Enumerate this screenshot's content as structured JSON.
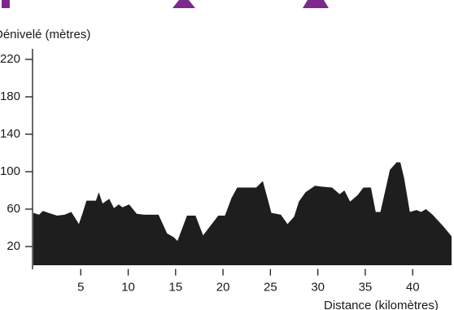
{
  "chart_data": {
    "type": "area",
    "y_label": "Dénivelé (mètres)",
    "x_label": "Distance (kilomètres)",
    "x": [
      0,
      0.6,
      1.0,
      1.6,
      2.5,
      3.3,
      4.0,
      4.5,
      4.8,
      5.2,
      5.6,
      6.6,
      6.9,
      7.3,
      8.0,
      8.5,
      9.0,
      9.4,
      10.1,
      10.9,
      11.7,
      13.2,
      14.1,
      14.8,
      15.2,
      16.2,
      17.1,
      17.9,
      19.5,
      20.2,
      20.9,
      21.5,
      23.5,
      24.2,
      25.1,
      26.1,
      26.8,
      27.5,
      28.0,
      28.7,
      29.7,
      30.4,
      31.5,
      32.3,
      32.8,
      33.4,
      34.2,
      34.8,
      35.6,
      36.1,
      36.6,
      37.6,
      38.3,
      38.7,
      39.1,
      39.7,
      40.4,
      40.9,
      41.4,
      42.1,
      43.2,
      44.1
    ],
    "values": [
      56,
      54,
      58,
      56,
      53,
      54,
      57,
      49,
      44,
      56,
      69,
      69,
      78,
      66,
      71,
      61,
      65,
      62,
      65,
      55,
      54,
      54,
      34,
      30,
      26,
      53,
      53,
      32,
      53,
      53,
      72,
      83,
      83,
      90,
      56,
      54,
      44,
      52,
      68,
      78,
      85,
      84,
      83,
      76,
      80,
      68,
      75,
      83,
      83,
      57,
      57,
      102,
      110,
      110,
      93,
      57,
      59,
      57,
      60,
      54,
      42,
      31
    ],
    "color": "#1e1e1e",
    "xlim": [
      0,
      44.1
    ],
    "xticks": [
      5,
      10,
      15,
      20,
      25,
      30,
      35,
      40
    ],
    "ylim": [
      -4,
      235
    ],
    "yticks": [
      220,
      180,
      140,
      100,
      60,
      20
    ]
  }
}
